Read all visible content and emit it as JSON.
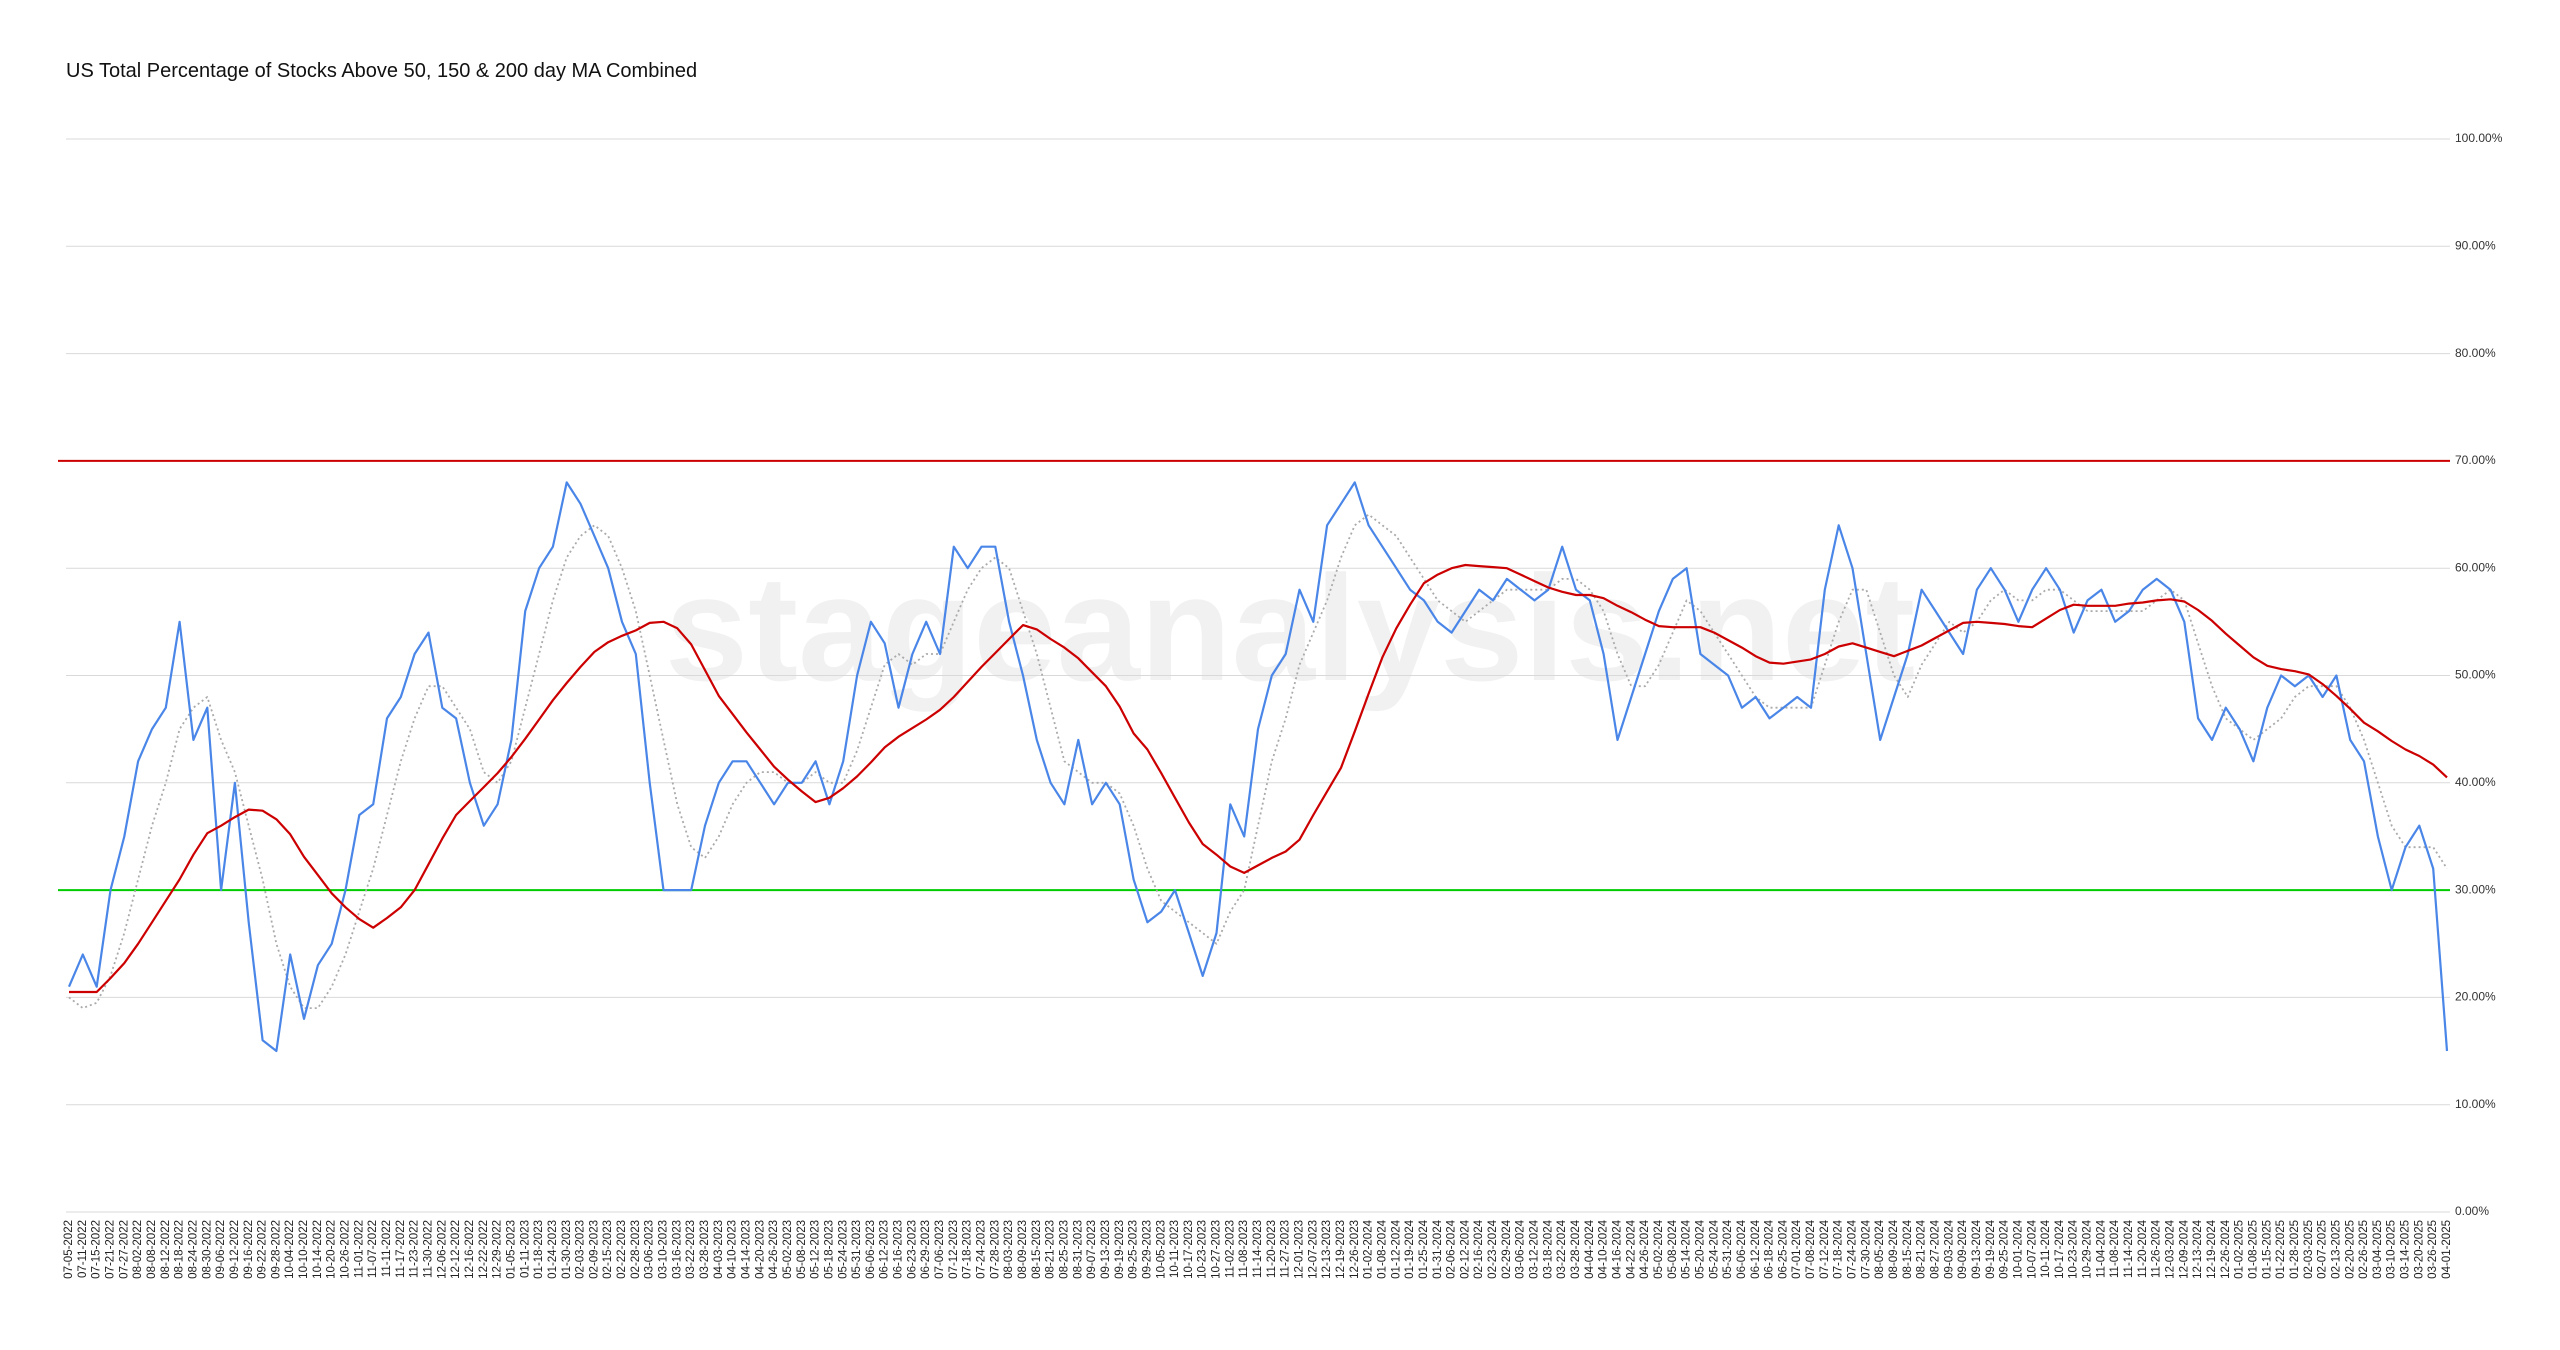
{
  "chart_data": {
    "type": "line",
    "title": "US Total Percentage of Stocks Above 50, 150 & 200 day MA Combined",
    "watermark": "stageanalysis.net",
    "categories": [
      "07-05-2022",
      "07-11-2022",
      "07-15-2022",
      "07-21-2022",
      "07-27-2022",
      "08-02-2022",
      "08-08-2022",
      "08-12-2022",
      "08-18-2022",
      "08-24-2022",
      "08-30-2022",
      "09-06-2022",
      "09-12-2022",
      "09-16-2022",
      "09-22-2022",
      "09-28-2022",
      "10-04-2022",
      "10-10-2022",
      "10-14-2022",
      "10-20-2022",
      "10-26-2022",
      "11-01-2022",
      "11-07-2022",
      "11-11-2022",
      "11-17-2022",
      "11-23-2022",
      "11-30-2022",
      "12-06-2022",
      "12-12-2022",
      "12-16-2022",
      "12-22-2022",
      "12-29-2022",
      "01-05-2023",
      "01-11-2023",
      "01-18-2023",
      "01-24-2023",
      "01-30-2023",
      "02-03-2023",
      "02-09-2023",
      "02-15-2023",
      "02-22-2023",
      "02-28-2023",
      "03-06-2023",
      "03-10-2023",
      "03-16-2023",
      "03-22-2023",
      "03-28-2023",
      "04-03-2023",
      "04-10-2023",
      "04-14-2023",
      "04-20-2023",
      "04-26-2023",
      "05-02-2023",
      "05-08-2023",
      "05-12-2023",
      "05-18-2023",
      "05-24-2023",
      "05-31-2023",
      "06-06-2023",
      "06-12-2023",
      "06-16-2023",
      "06-23-2023",
      "06-29-2023",
      "07-06-2023",
      "07-12-2023",
      "07-18-2023",
      "07-24-2023",
      "07-28-2023",
      "08-03-2023",
      "08-09-2023",
      "08-15-2023",
      "08-21-2023",
      "08-25-2023",
      "08-31-2023",
      "09-07-2023",
      "09-13-2023",
      "09-19-2023",
      "09-25-2023",
      "09-29-2023",
      "10-05-2023",
      "10-11-2023",
      "10-17-2023",
      "10-23-2023",
      "10-27-2023",
      "11-02-2023",
      "11-08-2023",
      "11-14-2023",
      "11-20-2023",
      "11-27-2023",
      "12-01-2023",
      "12-07-2023",
      "12-13-2023",
      "12-19-2023",
      "12-26-2023",
      "01-02-2024",
      "01-08-2024",
      "01-12-2024",
      "01-19-2024",
      "01-25-2024",
      "01-31-2024",
      "02-06-2024",
      "02-12-2024",
      "02-16-2024",
      "02-23-2024",
      "02-29-2024",
      "03-06-2024",
      "03-12-2024",
      "03-18-2024",
      "03-22-2024",
      "03-28-2024",
      "04-04-2024",
      "04-10-2024",
      "04-16-2024",
      "04-22-2024",
      "04-26-2024",
      "05-02-2024",
      "05-08-2024",
      "05-14-2024",
      "05-20-2024",
      "05-24-2024",
      "05-31-2024",
      "06-06-2024",
      "06-12-2024",
      "06-18-2024",
      "06-25-2024",
      "07-01-2024",
      "07-08-2024",
      "07-12-2024",
      "07-18-2024",
      "07-24-2024",
      "07-30-2024",
      "08-05-2024",
      "08-09-2024",
      "08-15-2024",
      "08-21-2024",
      "08-27-2024",
      "09-03-2024",
      "09-09-2024",
      "09-13-2024",
      "09-19-2024",
      "09-25-2024",
      "10-01-2024",
      "10-07-2024",
      "10-11-2024",
      "10-17-2024",
      "10-23-2024",
      "10-29-2024",
      "11-04-2024",
      "11-08-2024",
      "11-14-2024",
      "11-20-2024",
      "11-26-2024",
      "12-03-2024",
      "12-09-2024",
      "12-13-2024",
      "12-19-2024",
      "12-26-2024",
      "01-02-2025",
      "01-08-2025",
      "01-15-2025",
      "01-22-2025",
      "01-28-2025",
      "02-03-2025",
      "02-07-2025",
      "02-13-2025",
      "02-20-2025",
      "02-26-2025",
      "03-04-2025",
      "03-10-2025",
      "03-14-2025",
      "03-20-2025",
      "03-26-2025",
      "04-01-2025"
    ],
    "series": [
      {
        "color": "#4a86e8",
        "style": "solid",
        "values": [
          21,
          24,
          21,
          30,
          35,
          42,
          45,
          47,
          55,
          44,
          47,
          30,
          40,
          27,
          16,
          15,
          24,
          18,
          23,
          25,
          30,
          37,
          38,
          46,
          48,
          52,
          54,
          47,
          46,
          40,
          36,
          38,
          44,
          56,
          60,
          62,
          68,
          66,
          63,
          60,
          55,
          52,
          40,
          30,
          30,
          30,
          36,
          40,
          42,
          42,
          40,
          38,
          40,
          40,
          42,
          38,
          42,
          50,
          55,
          53,
          47,
          52,
          55,
          52,
          62,
          60,
          62,
          62,
          55,
          50,
          44,
          40,
          38,
          44,
          38,
          40,
          38,
          31,
          27,
          28,
          30,
          26,
          22,
          26,
          38,
          35,
          45,
          50,
          52,
          58,
          55,
          64,
          66,
          68,
          64,
          62,
          60,
          58,
          57,
          55,
          54,
          56,
          58,
          57,
          59,
          58,
          57,
          58,
          62,
          58,
          57,
          52,
          44,
          48,
          52,
          56,
          59,
          60,
          52,
          51,
          50,
          47,
          48,
          46,
          47,
          48,
          47,
          58,
          64,
          60,
          52,
          44,
          48,
          52,
          58,
          56,
          54,
          52,
          58,
          60,
          58,
          55,
          58,
          60,
          58,
          54,
          57,
          58,
          55,
          56,
          58,
          59,
          58,
          55,
          46,
          44,
          47,
          45,
          42,
          47,
          50,
          49,
          50,
          48,
          50,
          44,
          42,
          35,
          30,
          34,
          36,
          32,
          15
        ]
      },
      {
        "color": "#aaaaaa",
        "style": "dotted",
        "values": [
          20,
          19,
          19.5,
          22,
          26,
          31,
          36,
          40,
          45,
          47,
          48,
          44,
          41,
          36,
          31,
          25,
          21,
          19,
          19,
          21,
          24,
          28,
          32,
          37,
          42,
          46,
          49,
          49,
          47,
          45,
          41,
          40,
          42,
          47,
          52,
          57,
          61,
          63,
          64,
          63,
          60,
          56,
          50,
          44,
          38,
          34,
          33,
          35,
          38,
          40,
          41,
          41,
          40,
          40,
          41,
          40,
          40,
          43,
          47,
          51,
          52,
          51,
          52,
          52,
          55,
          58,
          60,
          61,
          60,
          56,
          52,
          47,
          42,
          41,
          40,
          40,
          39,
          36,
          32,
          29,
          28,
          27,
          26,
          25,
          28,
          30,
          36,
          42,
          46,
          51,
          54,
          57,
          61,
          64,
          65,
          64,
          63,
          61,
          59,
          57,
          56,
          55,
          56,
          57,
          58,
          58,
          58,
          58,
          59,
          59,
          58,
          56,
          52,
          49,
          49,
          51,
          54,
          57,
          56,
          54,
          52,
          50,
          48,
          47,
          47,
          47,
          47,
          51,
          55,
          58,
          58,
          54,
          50,
          48,
          51,
          53,
          55,
          54,
          55,
          57,
          58,
          57,
          57,
          58,
          58,
          57,
          56,
          56,
          56,
          56,
          56,
          57,
          58,
          57,
          53,
          49,
          46,
          45,
          44,
          45,
          46,
          48,
          49,
          49,
          49,
          47,
          44,
          40,
          36,
          34,
          34,
          34,
          32
        ]
      },
      {
        "color": "#cc0000",
        "style": "solid",
        "values": [
          20.5,
          20.5,
          20.5,
          21.8,
          23.2,
          25,
          27,
          29,
          31,
          33.3,
          35.3,
          36,
          36.8,
          37.5,
          37.4,
          36.6,
          35.2,
          33.1,
          31.4,
          29.7,
          28.4,
          27.3,
          26.5,
          27.4,
          28.4,
          30,
          32.4,
          34.8,
          37,
          38.3,
          39.6,
          40.9,
          42.4,
          44.1,
          45.9,
          47.7,
          49.3,
          50.8,
          52.2,
          53.1,
          53.7,
          54.2,
          54.9,
          55,
          54.4,
          52.9,
          50.5,
          48.1,
          46.4,
          44.7,
          43.1,
          41.5,
          40.3,
          39.2,
          38.2,
          38.6,
          39.5,
          40.6,
          41.9,
          43.3,
          44.3,
          45.1,
          45.9,
          46.8,
          48,
          49.4,
          50.8,
          52.1,
          53.4,
          54.7,
          54.3,
          53.4,
          52.6,
          51.6,
          50.3,
          49,
          47.1,
          44.6,
          43.1,
          40.9,
          38.6,
          36.3,
          34.3,
          33.3,
          32.2,
          31.6,
          32.3,
          33,
          33.6,
          34.7,
          37,
          39.2,
          41.4,
          44.8,
          48.3,
          51.7,
          54.4,
          56.6,
          58.6,
          59.4,
          60,
          60.3,
          60.2,
          60.1,
          60,
          59.4,
          58.8,
          58.2,
          57.8,
          57.5,
          57.5,
          57.2,
          56.5,
          55.9,
          55.2,
          54.6,
          54.5,
          54.5,
          54.5,
          54,
          53.3,
          52.6,
          51.8,
          51.2,
          51.1,
          51.3,
          51.5,
          52,
          52.7,
          53,
          52.6,
          52.2,
          51.8,
          52.3,
          52.8,
          53.5,
          54.2,
          54.9,
          55,
          54.9,
          54.8,
          54.6,
          54.5,
          55.3,
          56.1,
          56.6,
          56.5,
          56.5,
          56.5,
          56.7,
          56.8,
          57,
          57.1,
          56.9,
          56.1,
          55.1,
          53.9,
          52.8,
          51.7,
          50.9,
          50.6,
          50.4,
          50.1,
          49.2,
          48.1,
          46.9,
          45.6,
          44.8,
          43.9,
          43.1,
          42.5,
          41.7,
          40.5
        ]
      }
    ],
    "reference_lines": [
      {
        "value": 70,
        "color": "#cc0000"
      },
      {
        "value": 30,
        "color": "#00cc00"
      }
    ],
    "ylim": [
      0,
      100
    ],
    "yticks": [
      {
        "value": 0,
        "label": "0.00%"
      },
      {
        "value": 10,
        "label": "10.00%"
      },
      {
        "value": 20,
        "label": "20.00%"
      },
      {
        "value": 30,
        "label": "30.00%"
      },
      {
        "value": 40,
        "label": "40.00%"
      },
      {
        "value": 50,
        "label": "50.00%"
      },
      {
        "value": 60,
        "label": "60.00%"
      },
      {
        "value": 70,
        "label": "70.00%"
      },
      {
        "value": 80,
        "label": "80.00%"
      },
      {
        "value": 90,
        "label": "90.00%"
      },
      {
        "value": 100,
        "label": "100.00%"
      }
    ],
    "grid": true
  }
}
